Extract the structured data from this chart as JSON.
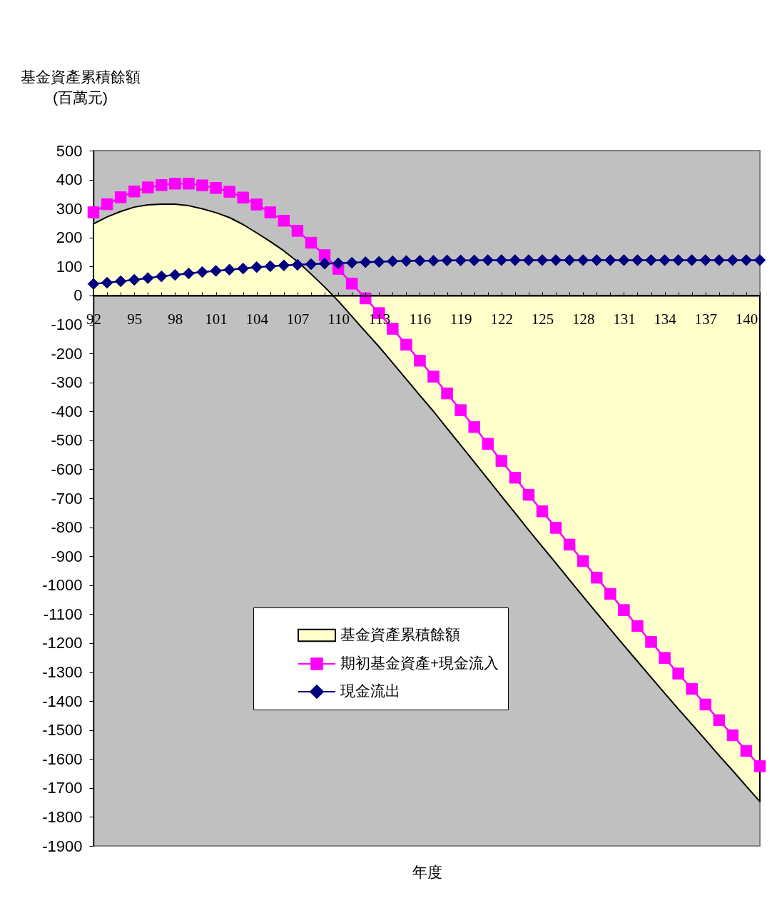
{
  "chart_data": {
    "type": "line",
    "xlabel": "年度",
    "ylabel": "基金資產累積餘額\n(百萬元)",
    "categories": [
      "92",
      null,
      null,
      "95",
      null,
      null,
      "98",
      null,
      null,
      "101",
      null,
      null,
      "104",
      null,
      null,
      "107",
      null,
      null,
      "110",
      null,
      null,
      "113",
      null,
      null,
      "116",
      null,
      null,
      "119",
      null,
      null,
      "122",
      null,
      null,
      "125",
      null,
      null,
      "128",
      null,
      null,
      "131",
      null,
      null,
      "134",
      null,
      null,
      "137",
      null,
      null,
      "140",
      null
    ],
    "ylim": [
      -1900,
      500
    ],
    "yticks": [
      -1900,
      -1800,
      -1700,
      -1600,
      -1500,
      -1400,
      -1300,
      -1200,
      -1100,
      -1000,
      -900,
      -800,
      -700,
      -600,
      -500,
      -400,
      -300,
      -200,
      -100,
      0,
      100,
      200,
      300,
      400,
      500
    ],
    "grid": false,
    "legend": "bottom",
    "series": [
      {
        "name": "基金資產累積餘額",
        "type": "area",
        "color": "#ffffcc",
        "values": [
          247,
          271,
          290,
          305,
          313,
          315,
          315,
          310,
          299,
          286,
          269,
          245,
          216,
          186,
          154,
          117,
          74,
          29,
          -19,
          -72,
          -125,
          -177,
          -233,
          -289,
          -345,
          -400,
          -459,
          -517,
          -575,
          -634,
          -693,
          -751,
          -810,
          -867,
          -924,
          -982,
          -1039,
          -1096,
          -1152,
          -1208,
          -1263,
          -1318,
          -1373,
          -1427,
          -1480,
          -1534,
          -1588,
          -1640,
          -1694,
          -1747
        ]
      },
      {
        "name": "期初基金資產+現金流入",
        "marker": "square",
        "color": "#ff00ff",
        "values": [
          287,
          315,
          339,
          359,
          373,
          381,
          386,
          386,
          380,
          371,
          358,
          338,
          314,
          287,
          258,
          223,
          182,
          139,
          92,
          41,
          -10,
          -61,
          -115,
          -170,
          -225,
          -280,
          -338,
          -396,
          -454,
          -512,
          -571,
          -629,
          -688,
          -745,
          -802,
          -860,
          -917,
          -974,
          -1030,
          -1086,
          -1141,
          -1196,
          -1251,
          -1305,
          -1358,
          -1412,
          -1466,
          -1518,
          -1572,
          -1625
        ]
      },
      {
        "name": "現金流出",
        "marker": "diamond",
        "color": "#000080",
        "values": [
          40,
          44,
          49,
          54,
          60,
          66,
          71,
          76,
          81,
          85,
          89,
          93,
          98,
          101,
          104,
          106,
          108,
          110,
          111,
          113,
          115,
          116,
          118,
          119,
          120,
          120,
          121,
          121,
          121,
          122,
          122,
          122,
          122,
          122,
          122,
          122,
          122,
          122,
          122,
          122,
          122,
          122,
          122,
          122,
          122,
          122,
          122,
          122,
          122,
          122
        ]
      }
    ]
  }
}
